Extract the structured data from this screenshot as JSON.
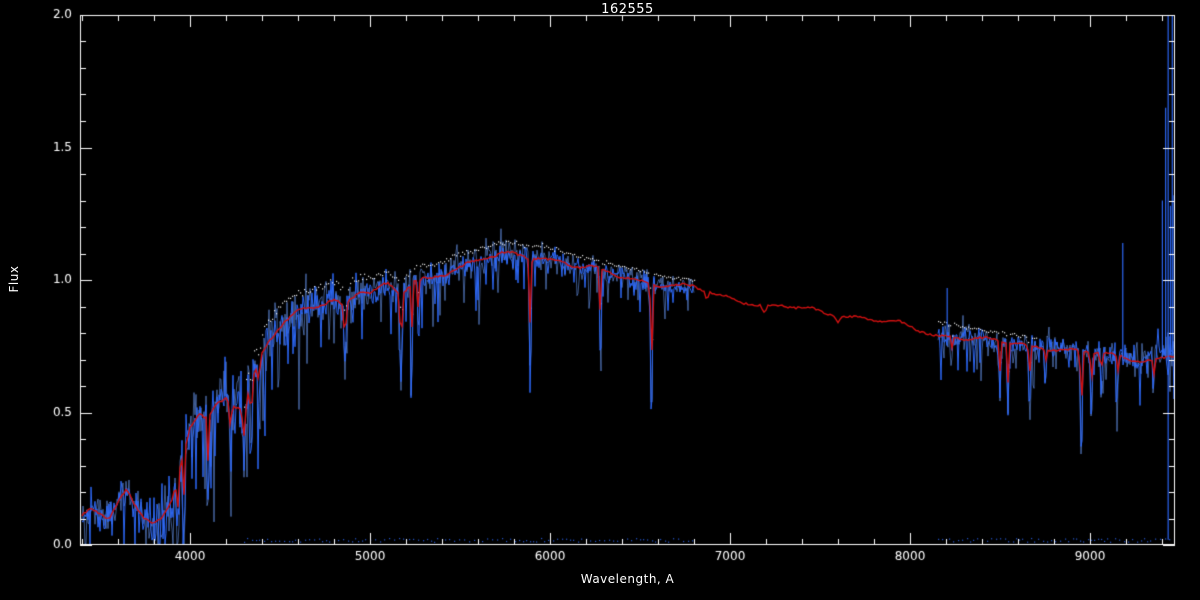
{
  "chart_data": {
    "type": "line",
    "title": "162555",
    "xlabel": "Wavelength, A",
    "ylabel": "Flux",
    "xlim": [
      3390,
      9470
    ],
    "ylim": [
      0,
      2
    ],
    "xticks": [
      4000,
      5000,
      6000,
      7000,
      8000,
      9000
    ],
    "xtick_labels": [
      "4000",
      "5000",
      "6000",
      "7000",
      "8000",
      "9000"
    ],
    "x_minor_step": 200,
    "yticks": [
      0,
      0.5,
      1,
      1.5,
      2
    ],
    "ytick_labels": [
      "0.0",
      "0.5",
      "1.0",
      "1.5",
      "2.0"
    ],
    "y_minor_step": 0.1,
    "grid": false,
    "legend": "none",
    "colors": {
      "background": "#000000",
      "frame": "#ffffff",
      "observed": "#2e6bff",
      "observed_light": "#6fa0ff",
      "model": "#d01010",
      "envelope": "#ffffff"
    },
    "series": [
      {
        "name": "observed-spectrum",
        "color": "#2e6bff",
        "segments": [
          [
            3400,
            6800
          ],
          [
            8150,
            9470
          ]
        ]
      },
      {
        "name": "model-fit",
        "color": "#d01010",
        "segments": [
          [
            3400,
            9470
          ]
        ]
      },
      {
        "name": "upper-envelope",
        "color": "#ffffff",
        "segments": [
          [
            4300,
            6800
          ],
          [
            8150,
            8700
          ]
        ]
      }
    ],
    "continuum": [
      [
        3400,
        0.1
      ],
      [
        3450,
        0.13
      ],
      [
        3500,
        0.12
      ],
      [
        3550,
        0.1
      ],
      [
        3600,
        0.16
      ],
      [
        3650,
        0.21
      ],
      [
        3700,
        0.15
      ],
      [
        3750,
        0.11
      ],
      [
        3800,
        0.09
      ],
      [
        3850,
        0.1
      ],
      [
        3900,
        0.16
      ],
      [
        3950,
        0.3
      ],
      [
        4000,
        0.44
      ],
      [
        4050,
        0.49
      ],
      [
        4100,
        0.47
      ],
      [
        4150,
        0.53
      ],
      [
        4200,
        0.56
      ],
      [
        4250,
        0.53
      ],
      [
        4300,
        0.52
      ],
      [
        4350,
        0.63
      ],
      [
        4400,
        0.72
      ],
      [
        4450,
        0.78
      ],
      [
        4500,
        0.82
      ],
      [
        4550,
        0.85
      ],
      [
        4600,
        0.88
      ],
      [
        4700,
        0.9
      ],
      [
        4800,
        0.93
      ],
      [
        4860,
        0.9
      ],
      [
        4900,
        0.94
      ],
      [
        4950,
        0.96
      ],
      [
        5000,
        0.95
      ],
      [
        5100,
        0.98
      ],
      [
        5170,
        0.94
      ],
      [
        5250,
        1.0
      ],
      [
        5350,
        1.01
      ],
      [
        5450,
        1.04
      ],
      [
        5550,
        1.06
      ],
      [
        5650,
        1.08
      ],
      [
        5750,
        1.1
      ],
      [
        5850,
        1.09
      ],
      [
        5950,
        1.09
      ],
      [
        6050,
        1.07
      ],
      [
        6150,
        1.05
      ],
      [
        6250,
        1.04
      ],
      [
        6350,
        1.02
      ],
      [
        6450,
        1.01
      ],
      [
        6550,
        0.99
      ],
      [
        6650,
        0.98
      ],
      [
        6800,
        0.97
      ],
      [
        6900,
        0.95
      ],
      [
        7000,
        0.93
      ],
      [
        7100,
        0.92
      ],
      [
        7200,
        0.9
      ],
      [
        7300,
        0.9
      ],
      [
        7400,
        0.89
      ],
      [
        7500,
        0.88
      ],
      [
        7600,
        0.87
      ],
      [
        7700,
        0.86
      ],
      [
        7800,
        0.85
      ],
      [
        7900,
        0.84
      ],
      [
        8000,
        0.82
      ],
      [
        8100,
        0.8
      ],
      [
        8150,
        0.79
      ],
      [
        8250,
        0.79
      ],
      [
        8350,
        0.78
      ],
      [
        8450,
        0.77
      ],
      [
        8550,
        0.76
      ],
      [
        8650,
        0.75
      ],
      [
        8750,
        0.75
      ],
      [
        8850,
        0.74
      ],
      [
        8950,
        0.73
      ],
      [
        9050,
        0.72
      ],
      [
        9150,
        0.71
      ],
      [
        9250,
        0.7
      ],
      [
        9350,
        0.7
      ],
      [
        9470,
        0.72
      ]
    ],
    "noise_amplitude": [
      [
        3400,
        0.05
      ],
      [
        3700,
        0.06
      ],
      [
        3900,
        0.09
      ],
      [
        4000,
        0.1
      ],
      [
        4200,
        0.11
      ],
      [
        4400,
        0.09
      ],
      [
        4600,
        0.075
      ],
      [
        4800,
        0.065
      ],
      [
        5000,
        0.055
      ],
      [
        5400,
        0.05
      ],
      [
        5800,
        0.045
      ],
      [
        6200,
        0.04
      ],
      [
        6600,
        0.035
      ],
      [
        6800,
        0.03
      ],
      [
        8150,
        0.05
      ],
      [
        8300,
        0.04
      ],
      [
        8600,
        0.035
      ],
      [
        9000,
        0.04
      ],
      [
        9300,
        0.05
      ],
      [
        9470,
        0.06
      ]
    ],
    "absorption_lines": [
      [
        3933,
        0.02,
        12
      ],
      [
        3968,
        0.04,
        10
      ],
      [
        4101,
        0.18,
        10
      ],
      [
        4227,
        0.28,
        8
      ],
      [
        4300,
        0.32,
        14
      ],
      [
        4340,
        0.36,
        10
      ],
      [
        4383,
        0.48,
        8
      ],
      [
        4861,
        0.64,
        10
      ],
      [
        5173,
        0.62,
        12
      ],
      [
        5230,
        0.4,
        6
      ],
      [
        5270,
        0.72,
        8
      ],
      [
        5890,
        0.6,
        10
      ],
      [
        6280,
        0.64,
        8
      ],
      [
        6563,
        0.36,
        9
      ],
      [
        6870,
        0.9,
        15
      ],
      [
        7190,
        0.85,
        18
      ],
      [
        7600,
        0.83,
        16
      ],
      [
        8230,
        0.7,
        8
      ],
      [
        8498,
        0.56,
        9
      ],
      [
        8542,
        0.48,
        9
      ],
      [
        8662,
        0.5,
        9
      ],
      [
        8750,
        0.62,
        8
      ],
      [
        8950,
        0.28,
        9
      ],
      [
        9005,
        0.44,
        8
      ],
      [
        9060,
        0.55,
        8
      ],
      [
        9150,
        0.54,
        8
      ],
      [
        9350,
        0.55,
        8
      ]
    ],
    "emission_spikes": [
      [
        8205,
        0.97
      ],
      [
        9180,
        1.14
      ],
      [
        9400,
        1.3
      ],
      [
        9418,
        1.65
      ],
      [
        9432,
        2.0,
        0.02
      ],
      [
        9445,
        1.28
      ],
      [
        9455,
        2.0
      ],
      [
        9465,
        1.32
      ]
    ],
    "zero_level_segments": [
      [
        4300,
        6800
      ],
      [
        8150,
        9470
      ]
    ]
  }
}
